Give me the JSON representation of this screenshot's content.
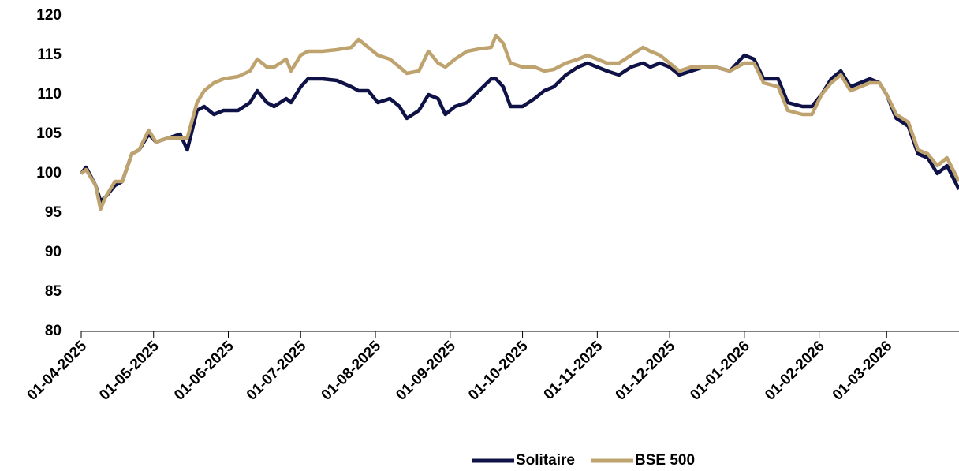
{
  "chart_data": {
    "type": "line",
    "x": [
      "01-04-2025",
      "03-04-2025",
      "07-04-2025",
      "09-04-2025",
      "11-04-2025",
      "15-04-2025",
      "18-04-2025",
      "22-04-2025",
      "25-04-2025",
      "29-04-2025",
      "02-05-2025",
      "07-05-2025",
      "12-05-2025",
      "15-05-2025",
      "19-05-2025",
      "22-05-2025",
      "26-05-2025",
      "30-05-2025",
      "05-06-2025",
      "10-06-2025",
      "13-06-2025",
      "17-06-2025",
      "20-06-2025",
      "25-06-2025",
      "27-06-2025",
      "01-07-2025",
      "04-07-2025",
      "10-07-2025",
      "16-07-2025",
      "22-07-2025",
      "25-07-2025",
      "29-07-2025",
      "02-08-2025",
      "07-08-2025",
      "11-08-2025",
      "14-08-2025",
      "19-08-2025",
      "23-08-2025",
      "27-08-2025",
      "30-08-2025",
      "03-09-2025",
      "08-09-2025",
      "13-09-2025",
      "18-09-2025",
      "20-09-2025",
      "23-09-2025",
      "26-09-2025",
      "01-10-2025",
      "06-10-2025",
      "10-10-2025",
      "14-10-2025",
      "19-10-2025",
      "24-10-2025",
      "28-10-2025",
      "01-11-2025",
      "05-11-2025",
      "10-11-2025",
      "15-11-2025",
      "20-11-2025",
      "23-11-2025",
      "27-11-2025",
      "01-12-2025",
      "05-12-2025",
      "10-12-2025",
      "15-12-2025",
      "20-12-2025",
      "26-12-2025",
      "01-01-2026",
      "05-01-2026",
      "09-01-2026",
      "15-01-2026",
      "19-01-2026",
      "25-01-2026",
      "29-01-2026",
      "02-02-2026",
      "06-02-2026",
      "10-02-2026",
      "14-02-2026",
      "18-02-2026",
      "22-02-2026",
      "26-02-2026",
      "01-03-2026",
      "05-03-2026",
      "10-03-2026",
      "14-03-2026",
      "18-03-2026",
      "22-03-2026",
      "26-03-2026",
      "31-03-2026"
    ],
    "series": [
      {
        "name": "Solitaire",
        "color": "#0f1246",
        "values": [
          100,
          100.8,
          98.5,
          96.5,
          97,
          98.5,
          99,
          102.5,
          103,
          105,
          104,
          104.5,
          105,
          103,
          108,
          108.5,
          107.5,
          108,
          108,
          109,
          110.5,
          109,
          108.5,
          109.5,
          109,
          111,
          112,
          112,
          111.8,
          111,
          110.5,
          110.5,
          109,
          109.5,
          108.5,
          107,
          108,
          110,
          109.5,
          107.5,
          108.5,
          109,
          110.5,
          112,
          112,
          111,
          108.5,
          108.5,
          109.5,
          110.5,
          111,
          112.5,
          113.5,
          114,
          113.5,
          113,
          112.5,
          113.5,
          114,
          113.5,
          114,
          113.5,
          112.5,
          113,
          113.5,
          113.5,
          113,
          115,
          114.5,
          112,
          112,
          109,
          108.5,
          108.5,
          110,
          112,
          113,
          111,
          111.5,
          112,
          111.5,
          110,
          107,
          106,
          102.5,
          102,
          100,
          101,
          98
        ]
      },
      {
        "name": "BSE 500",
        "color": "#bfa36f",
        "values": [
          100,
          100.5,
          98.5,
          95.5,
          97,
          99,
          99,
          102.5,
          103,
          105.5,
          104,
          104.5,
          104.5,
          104.5,
          109,
          110.5,
          111.5,
          112,
          112.3,
          113,
          114.5,
          113.5,
          113.5,
          114.5,
          113,
          115,
          115.5,
          115.5,
          115.7,
          116,
          117,
          116,
          115,
          114.5,
          113.5,
          112.7,
          113,
          115.5,
          114,
          113.5,
          114.5,
          115.5,
          115.8,
          116,
          117.5,
          116.5,
          114,
          113.5,
          113.5,
          113,
          113.2,
          114,
          114.5,
          115,
          114.5,
          114,
          114,
          115,
          116,
          115.5,
          115,
          114,
          113,
          113.5,
          113.5,
          113.5,
          113,
          114,
          114,
          111.5,
          111,
          108,
          107.5,
          107.5,
          110,
          111.5,
          112.5,
          110.5,
          111,
          111.5,
          111.5,
          110,
          107.5,
          106.5,
          103,
          102.5,
          101,
          102,
          99
        ]
      }
    ],
    "xlim": [
      "01-04-2025",
      "31-03-2026"
    ],
    "xticks": [
      "01-04-2025",
      "01-05-2025",
      "01-06-2025",
      "01-07-2025",
      "01-08-2025",
      "01-09-2025",
      "01-10-2025",
      "01-11-2025",
      "01-12-2025",
      "01-01-2026",
      "01-02-2026",
      "01-03-2026"
    ],
    "ylim": [
      80,
      120
    ],
    "yticks": [
      80,
      85,
      90,
      95,
      100,
      105,
      110,
      115,
      120
    ],
    "legend": "bottom"
  }
}
